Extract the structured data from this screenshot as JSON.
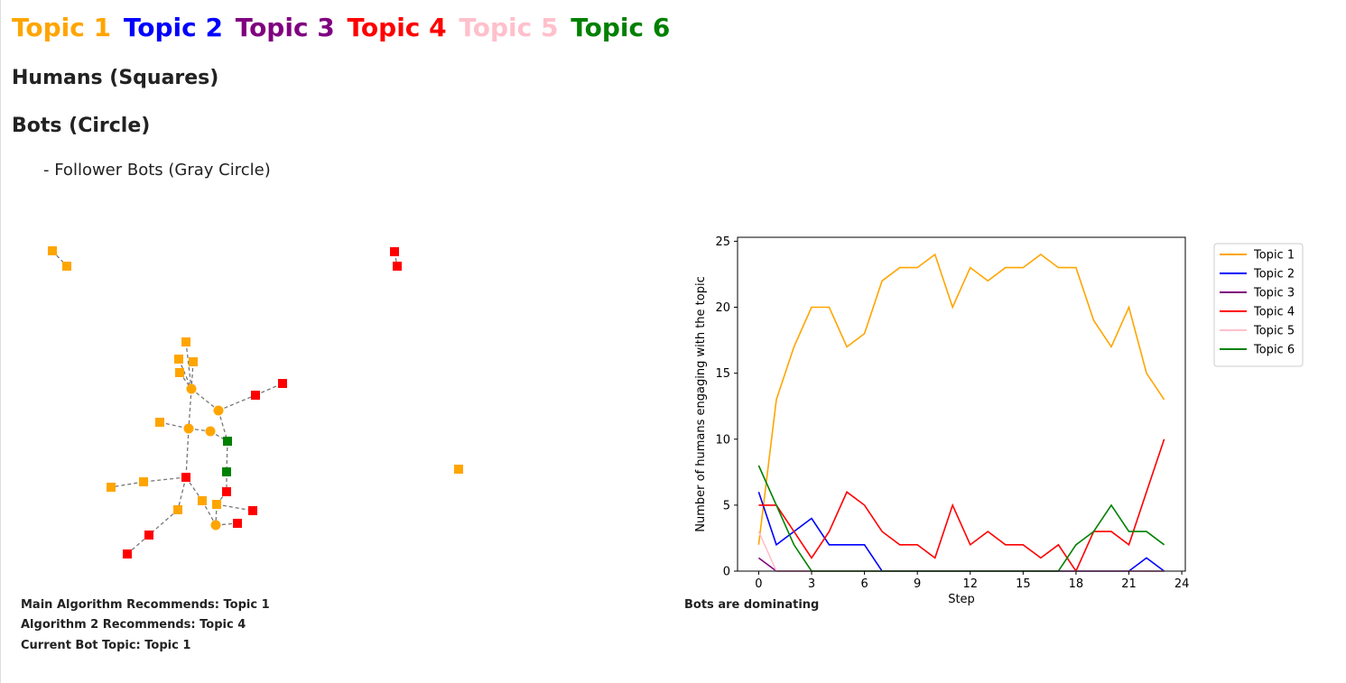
{
  "topics": [
    {
      "label": "Topic 1",
      "color": "#FFA500"
    },
    {
      "label": "Topic 2",
      "color": "#0000FF"
    },
    {
      "label": "Topic 3",
      "color": "#800080"
    },
    {
      "label": "Topic 4",
      "color": "#FF0000"
    },
    {
      "label": "Topic 5",
      "color": "#FFC0CB"
    },
    {
      "label": "Topic 6",
      "color": "#008000"
    }
  ],
  "legend": {
    "humans": "Humans (Squares)",
    "bots": "Bots (Circle)",
    "follower_bots": "- Follower Bots (Gray Circle)"
  },
  "status": {
    "main_algorithm": "Main Algorithm Recommends: Topic 1",
    "algorithm_2": "Algorithm 2 Recommends: Topic 4",
    "current_bot_topic": "Current Bot Topic: Topic 1",
    "dominance": "Bots are dominating"
  },
  "network": {
    "nodes": [
      {
        "id": "a1",
        "shape": "square",
        "topic": 1
      },
      {
        "id": "a2",
        "shape": "square",
        "topic": 1
      },
      {
        "id": "b1",
        "shape": "square",
        "topic": 4
      },
      {
        "id": "b2",
        "shape": "square",
        "topic": 4
      },
      {
        "id": "c1",
        "shape": "square",
        "topic": 1
      },
      {
        "id": "n1",
        "shape": "square",
        "topic": 1
      },
      {
        "id": "n2",
        "shape": "square",
        "topic": 1
      },
      {
        "id": "n3",
        "shape": "square",
        "topic": 1
      },
      {
        "id": "n4",
        "shape": "square",
        "topic": 1
      },
      {
        "id": "b_c1",
        "shape": "circle",
        "topic": 1
      },
      {
        "id": "b_c2",
        "shape": "circle",
        "topic": 1
      },
      {
        "id": "r1",
        "shape": "square",
        "topic": 4
      },
      {
        "id": "r2",
        "shape": "square",
        "topic": 4
      },
      {
        "id": "o1",
        "shape": "square",
        "topic": 1
      },
      {
        "id": "b_c3",
        "shape": "circle",
        "topic": 1
      },
      {
        "id": "b_c4",
        "shape": "circle",
        "topic": 1
      },
      {
        "id": "g1",
        "shape": "square",
        "topic": 6
      },
      {
        "id": "g2",
        "shape": "square",
        "topic": 6
      },
      {
        "id": "b_r1",
        "shape": "square",
        "topic": 4
      },
      {
        "id": "o2",
        "shape": "square",
        "topic": 1
      },
      {
        "id": "o3",
        "shape": "square",
        "topic": 1
      },
      {
        "id": "r3",
        "shape": "square",
        "topic": 4
      },
      {
        "id": "o4",
        "shape": "square",
        "topic": 1
      },
      {
        "id": "o5",
        "shape": "square",
        "topic": 1
      },
      {
        "id": "o6",
        "shape": "square",
        "topic": 1
      },
      {
        "id": "r4",
        "shape": "square",
        "topic": 4
      },
      {
        "id": "r5",
        "shape": "square",
        "topic": 4
      },
      {
        "id": "b_c5",
        "shape": "circle",
        "topic": 1
      },
      {
        "id": "r6",
        "shape": "square",
        "topic": 4
      },
      {
        "id": "r7",
        "shape": "square",
        "topic": 4
      }
    ],
    "edges": [
      [
        "a1",
        "a2"
      ],
      [
        "b1",
        "b2"
      ],
      [
        "n1",
        "b_c1"
      ],
      [
        "n2",
        "b_c1"
      ],
      [
        "n3",
        "b_c1"
      ],
      [
        "n4",
        "b_c1"
      ],
      [
        "b_c1",
        "b_c2"
      ],
      [
        "b_c1",
        "b_c3"
      ],
      [
        "b_c2",
        "r1"
      ],
      [
        "r1",
        "r2"
      ],
      [
        "b_c2",
        "g1"
      ],
      [
        "o1",
        "b_c3"
      ],
      [
        "b_c3",
        "b_c4"
      ],
      [
        "b_c4",
        "g1"
      ],
      [
        "g1",
        "g2"
      ],
      [
        "b_c3",
        "b_r1"
      ],
      [
        "b_r1",
        "o2"
      ],
      [
        "o2",
        "o3"
      ],
      [
        "g2",
        "r3"
      ],
      [
        "b_r1",
        "o4"
      ],
      [
        "b_r1",
        "o5"
      ],
      [
        "o5",
        "b_c5"
      ],
      [
        "o6",
        "r4"
      ],
      [
        "o6",
        "b_c5"
      ],
      [
        "b_c5",
        "r5"
      ],
      [
        "o4",
        "r6"
      ],
      [
        "r6",
        "r7"
      ],
      [
        "r3",
        "o6"
      ]
    ]
  },
  "chart_data": {
    "type": "line",
    "xlabel": "Step",
    "ylabel": "Number of humans engaging with the topic",
    "xlim": [
      -1.2,
      24.2
    ],
    "ylim": [
      0,
      25.3
    ],
    "xticks": [
      0,
      3,
      6,
      9,
      12,
      15,
      18,
      21,
      24
    ],
    "yticks": [
      0,
      5,
      10,
      15,
      20,
      25
    ],
    "legend_position": "outside-right-top",
    "x": [
      0,
      1,
      2,
      3,
      4,
      5,
      6,
      7,
      8,
      9,
      10,
      11,
      12,
      13,
      14,
      15,
      16,
      17,
      18,
      19,
      20,
      21,
      22,
      23
    ],
    "series": [
      {
        "name": "Topic 1",
        "color": "#FFA500",
        "values": [
          2,
          13,
          17,
          20,
          20,
          17,
          18,
          22,
          23,
          23,
          24,
          20,
          23,
          22,
          23,
          23,
          24,
          23,
          23,
          19,
          17,
          20,
          15,
          13
        ]
      },
      {
        "name": "Topic 2",
        "color": "#0000FF",
        "values": [
          6,
          2,
          3,
          4,
          2,
          2,
          2,
          0,
          0,
          0,
          0,
          0,
          0,
          0,
          0,
          0,
          0,
          0,
          0,
          0,
          0,
          0,
          1,
          0
        ]
      },
      {
        "name": "Topic 3",
        "color": "#800080",
        "values": [
          1,
          0,
          0,
          0,
          0,
          0,
          0,
          0,
          0,
          0,
          0,
          0,
          0,
          0,
          0,
          0,
          0,
          0,
          0,
          0,
          0,
          0,
          0,
          0
        ]
      },
      {
        "name": "Topic 4",
        "color": "#FF0000",
        "values": [
          5,
          5,
          3,
          1,
          3,
          6,
          5,
          3,
          2,
          2,
          1,
          5,
          2,
          3,
          2,
          2,
          1,
          2,
          0,
          3,
          3,
          2,
          6,
          10
        ]
      },
      {
        "name": "Topic 5",
        "color": "#FFC0CB",
        "values": [
          3,
          0,
          0,
          0,
          0,
          0,
          0,
          0,
          0,
          0,
          0,
          0,
          0,
          0,
          0,
          0,
          0,
          0,
          0,
          0,
          0,
          0,
          0,
          0
        ]
      },
      {
        "name": "Topic 6",
        "color": "#008000",
        "values": [
          8,
          5,
          2,
          0,
          0,
          0,
          0,
          0,
          0,
          0,
          0,
          0,
          0,
          0,
          0,
          0,
          0,
          0,
          2,
          3,
          5,
          3,
          3,
          2
        ]
      }
    ]
  }
}
